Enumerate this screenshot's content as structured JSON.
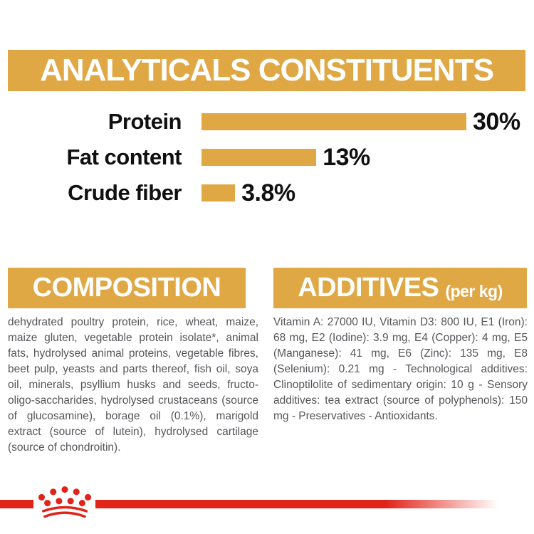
{
  "colors": {
    "gold": "#DFA845",
    "red": "#E2231A",
    "text_black": "#101010",
    "text_gray": "#55565A",
    "white": "#ffffff"
  },
  "header": {
    "title": "ANALYTICALS CONSTITUENTS"
  },
  "chart_data": {
    "type": "bar",
    "orientation": "horizontal",
    "categories": [
      "Protein",
      "Fat content",
      "Crude fiber"
    ],
    "values": [
      30,
      13,
      3.8
    ],
    "value_labels": [
      "30%",
      "13%",
      "3.8%"
    ],
    "unit": "%",
    "xlim": [
      0,
      30
    ],
    "grid": false,
    "legend": false,
    "bar_color": "#DFA845",
    "label_color": "#101010",
    "title": "ANALYTICALS CONSTITUENTS"
  },
  "composition": {
    "title": "COMPOSITION",
    "body": "dehydrated poultry protein, rice, wheat, maize, maize gluten, vegetable protein isolate*, animal fats, hydrolysed animal proteins, vegetable fibres, beet pulp, yeasts and parts thereof, fish oil, soya oil, minerals, psyllium husks and seeds, fructo-oligo-saccharides, hydrolysed crustaceans (source of glucosamine), borage oil (0.1%), marigold extract (source of lutein), hydrolysed cartilage (source of chondroitin)."
  },
  "additives": {
    "title": "ADDITIVES",
    "title_suffix": "(per kg)",
    "body": "Vitamin A: 27000 IU, Vitamin D3: 800 IU, E1 (Iron): 68 mg, E2 (Iodine): 3.9 mg, E4 (Copper): 4 mg, E5 (Manganese): 41 mg, E6 (Zinc): 135 mg, E8 (Selenium): 0.21 mg - Technological additives: Clinoptilolite of sedimentary origin: 10 g - Sensory additives: tea extract (source of polyphenols): 150 mg - Preservatives - Antioxidants."
  },
  "footer": {
    "logo": "royal-canin-crown-logo"
  }
}
